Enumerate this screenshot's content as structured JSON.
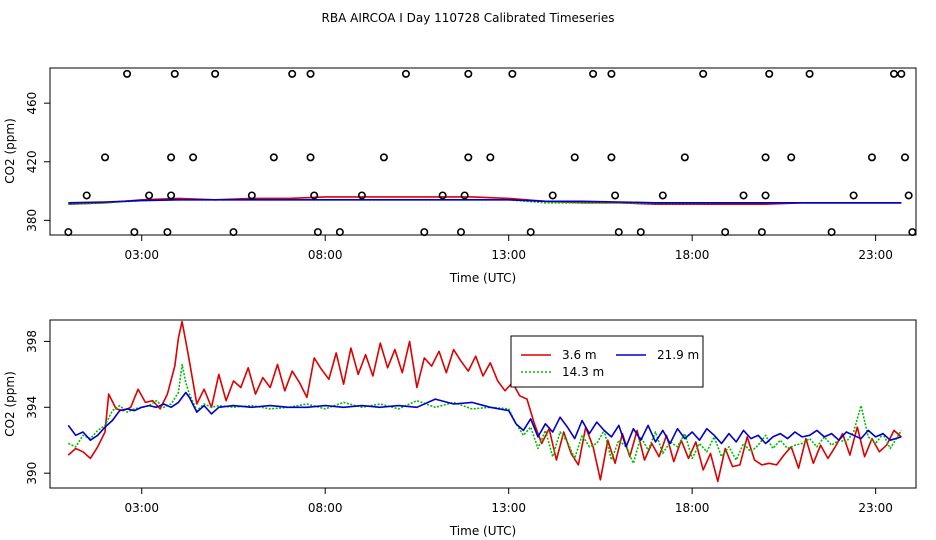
{
  "title": "RBA AIRCOA I  Day 110728  Calibrated Timeseries",
  "chart_data": [
    {
      "type": "line",
      "xlabel": "Time (UTC)",
      "ylabel": "CO2 (ppm)",
      "xlim": [
        0.5,
        24.1
      ],
      "ylim": [
        370,
        484
      ],
      "x_ticks": [
        3,
        8,
        13,
        18,
        23
      ],
      "x_tick_labels": [
        "03:00",
        "08:00",
        "13:00",
        "18:00",
        "23:00"
      ],
      "y_ticks": [
        380,
        420,
        460
      ],
      "y_tick_labels": [
        "380",
        "420",
        "460"
      ],
      "outliers": [
        {
          "x": 1.0,
          "y": 372
        },
        {
          "x": 1.5,
          "y": 397
        },
        {
          "x": 2.0,
          "y": 423
        },
        {
          "x": 2.6,
          "y": 480
        },
        {
          "x": 2.8,
          "y": 372
        },
        {
          "x": 3.2,
          "y": 397
        },
        {
          "x": 3.7,
          "y": 372
        },
        {
          "x": 3.8,
          "y": 397
        },
        {
          "x": 3.8,
          "y": 423
        },
        {
          "x": 3.9,
          "y": 480
        },
        {
          "x": 4.4,
          "y": 423
        },
        {
          "x": 5.0,
          "y": 480
        },
        {
          "x": 5.5,
          "y": 372
        },
        {
          "x": 6.0,
          "y": 397
        },
        {
          "x": 6.6,
          "y": 423
        },
        {
          "x": 7.1,
          "y": 480
        },
        {
          "x": 7.6,
          "y": 480
        },
        {
          "x": 7.6,
          "y": 423
        },
        {
          "x": 7.7,
          "y": 397
        },
        {
          "x": 7.8,
          "y": 372
        },
        {
          "x": 8.4,
          "y": 372
        },
        {
          "x": 9.0,
          "y": 397
        },
        {
          "x": 9.6,
          "y": 423
        },
        {
          "x": 10.2,
          "y": 480
        },
        {
          "x": 10.7,
          "y": 372
        },
        {
          "x": 11.2,
          "y": 397
        },
        {
          "x": 11.7,
          "y": 372
        },
        {
          "x": 11.8,
          "y": 397
        },
        {
          "x": 11.9,
          "y": 423
        },
        {
          "x": 11.9,
          "y": 480
        },
        {
          "x": 12.5,
          "y": 423
        },
        {
          "x": 13.1,
          "y": 480
        },
        {
          "x": 13.6,
          "y": 372
        },
        {
          "x": 14.2,
          "y": 397
        },
        {
          "x": 14.8,
          "y": 423
        },
        {
          "x": 15.3,
          "y": 480
        },
        {
          "x": 15.8,
          "y": 480
        },
        {
          "x": 15.8,
          "y": 423
        },
        {
          "x": 15.9,
          "y": 397
        },
        {
          "x": 16.0,
          "y": 372
        },
        {
          "x": 16.6,
          "y": 372
        },
        {
          "x": 17.2,
          "y": 397
        },
        {
          "x": 17.8,
          "y": 423
        },
        {
          "x": 18.3,
          "y": 480
        },
        {
          "x": 18.9,
          "y": 372
        },
        {
          "x": 19.4,
          "y": 397
        },
        {
          "x": 19.9,
          "y": 372
        },
        {
          "x": 20.0,
          "y": 397
        },
        {
          "x": 20.0,
          "y": 423
        },
        {
          "x": 20.1,
          "y": 480
        },
        {
          "x": 20.7,
          "y": 423
        },
        {
          "x": 21.2,
          "y": 480
        },
        {
          "x": 21.8,
          "y": 372
        },
        {
          "x": 22.4,
          "y": 397
        },
        {
          "x": 22.9,
          "y": 423
        },
        {
          "x": 23.5,
          "y": 480
        },
        {
          "x": 23.7,
          "y": 480
        },
        {
          "x": 23.8,
          "y": 423
        },
        {
          "x": 23.9,
          "y": 397
        },
        {
          "x": 24.0,
          "y": 372
        }
      ],
      "series": [
        {
          "name": "3.6 m",
          "color": "#dd0000",
          "x": [
            1.0,
            2.0,
            3.0,
            4.0,
            5.0,
            6.0,
            7.0,
            8.0,
            9.0,
            10.0,
            11.0,
            12.0,
            13.0,
            14.0,
            15.0,
            16.0,
            17.0,
            18.0,
            19.0,
            20.0,
            21.0,
            22.0,
            23.0,
            23.7
          ],
          "y": [
            391,
            392,
            394,
            395,
            394,
            395,
            395,
            396,
            396,
            396,
            396,
            396,
            395,
            393,
            392,
            392,
            391,
            391,
            391,
            391,
            392,
            392,
            392,
            392
          ]
        },
        {
          "name": "14.3 m",
          "color": "#00bb00",
          "x": [
            1.0,
            2.0,
            3.0,
            4.0,
            5.0,
            6.0,
            7.0,
            8.0,
            9.0,
            10.0,
            11.0,
            12.0,
            13.0,
            14.0,
            15.0,
            16.0,
            17.0,
            18.0,
            19.0,
            20.0,
            21.0,
            22.0,
            23.0,
            23.7
          ],
          "y": [
            391,
            392,
            393.5,
            394,
            394,
            394,
            394,
            394,
            394,
            394,
            394,
            394,
            394,
            392,
            392,
            392,
            391.5,
            391.5,
            392,
            392,
            392,
            392,
            392,
            392
          ]
        },
        {
          "name": "21.9 m",
          "color": "#0000cc",
          "x": [
            1.0,
            2.0,
            3.0,
            4.0,
            5.0,
            6.0,
            7.0,
            8.0,
            9.0,
            10.0,
            11.0,
            12.0,
            13.0,
            14.0,
            15.0,
            16.0,
            17.0,
            18.0,
            19.0,
            20.0,
            21.0,
            22.0,
            23.0,
            23.7
          ],
          "y": [
            392,
            392.5,
            393.5,
            394,
            394,
            394,
            394,
            394,
            394,
            394,
            394,
            394,
            394,
            393,
            393,
            392.5,
            392,
            392,
            392,
            392,
            392,
            392,
            392,
            392
          ]
        }
      ]
    },
    {
      "type": "line",
      "xlabel": "Time (UTC)",
      "ylabel": "CO2 (ppm)",
      "xlim": [
        0.5,
        24.1
      ],
      "ylim": [
        389.1,
        399.3
      ],
      "x_ticks": [
        3,
        8,
        13,
        18,
        23
      ],
      "x_tick_labels": [
        "03:00",
        "08:00",
        "13:00",
        "18:00",
        "23:00"
      ],
      "y_ticks": [
        390,
        394,
        398
      ],
      "y_tick_labels": [
        "390",
        "394",
        "398"
      ],
      "legend": {
        "position": "top-center",
        "entries": [
          "3.6 m",
          "14.3 m",
          "21.9 m"
        ]
      },
      "series": [
        {
          "name": "3.6 m",
          "color": "#dd0000",
          "x": [
            1.0,
            1.2,
            1.4,
            1.6,
            1.8,
            2.0,
            2.1,
            2.3,
            2.5,
            2.7,
            2.9,
            3.1,
            3.3,
            3.5,
            3.7,
            3.9,
            4.0,
            4.1,
            4.2,
            4.3,
            4.5,
            4.7,
            4.9,
            5.1,
            5.3,
            5.5,
            5.7,
            5.9,
            6.1,
            6.3,
            6.5,
            6.7,
            6.9,
            7.1,
            7.3,
            7.5,
            7.7,
            7.9,
            8.1,
            8.3,
            8.5,
            8.7,
            8.9,
            9.1,
            9.3,
            9.5,
            9.7,
            9.9,
            10.1,
            10.3,
            10.5,
            10.7,
            10.9,
            11.1,
            11.3,
            11.5,
            11.7,
            11.9,
            12.1,
            12.3,
            12.5,
            12.7,
            12.9,
            13.1,
            13.3,
            13.5,
            13.7,
            13.9,
            14.1,
            14.3,
            14.5,
            14.7,
            14.9,
            15.1,
            15.3,
            15.5,
            15.7,
            15.9,
            16.1,
            16.3,
            16.5,
            16.7,
            16.9,
            17.1,
            17.3,
            17.5,
            17.7,
            17.9,
            18.1,
            18.3,
            18.5,
            18.7,
            18.9,
            19.1,
            19.3,
            19.5,
            19.7,
            19.9,
            20.1,
            20.3,
            20.5,
            20.7,
            20.9,
            21.1,
            21.3,
            21.5,
            21.7,
            21.9,
            22.1,
            22.3,
            22.5,
            22.7,
            22.9,
            23.1,
            23.3,
            23.5,
            23.7
          ],
          "y": [
            391.1,
            391.5,
            391.3,
            390.9,
            391.6,
            392.5,
            394.8,
            393.9,
            393.8,
            394.0,
            395.1,
            394.3,
            394.4,
            393.9,
            394.8,
            396.5,
            398.2,
            399.2,
            398.0,
            396.8,
            394.2,
            395.1,
            394.0,
            396.0,
            394.4,
            395.6,
            395.2,
            396.4,
            394.8,
            395.8,
            395.2,
            396.6,
            395.0,
            396.2,
            395.5,
            394.6,
            397.0,
            396.3,
            395.7,
            397.3,
            395.4,
            397.6,
            396.0,
            397.2,
            395.9,
            397.9,
            396.4,
            397.5,
            396.1,
            398.0,
            395.2,
            397.0,
            396.5,
            397.4,
            396.1,
            397.5,
            396.8,
            396.2,
            397.1,
            395.9,
            396.7,
            395.6,
            395.0,
            395.5,
            394.7,
            394.5,
            393.0,
            391.8,
            392.7,
            390.8,
            392.5,
            391.2,
            390.5,
            392.8,
            391.6,
            389.6,
            392.0,
            390.6,
            392.4,
            391.0,
            392.6,
            390.8,
            391.8,
            391.0,
            392.3,
            390.7,
            392.0,
            390.9,
            391.9,
            390.2,
            391.2,
            389.5,
            391.5,
            390.4,
            390.5,
            392.2,
            390.8,
            390.5,
            390.6,
            390.5,
            391.1,
            391.6,
            390.3,
            392.1,
            390.6,
            391.7,
            390.9,
            391.6,
            392.4,
            391.1,
            392.8,
            391.0,
            392.1,
            391.3,
            391.7,
            392.6,
            392.2
          ]
        },
        {
          "name": "14.3 m",
          "color": "#00bb00",
          "x": [
            1.0,
            1.2,
            1.4,
            1.6,
            1.8,
            2.0,
            2.2,
            2.4,
            2.6,
            2.8,
            3.0,
            3.2,
            3.4,
            3.6,
            3.8,
            4.0,
            4.1,
            4.2,
            4.3,
            4.5,
            4.7,
            4.9,
            5.1,
            5.5,
            6.0,
            6.5,
            7.0,
            7.5,
            8.0,
            8.5,
            9.0,
            9.5,
            10.0,
            10.5,
            11.0,
            11.5,
            12.0,
            12.5,
            13.0,
            13.2,
            13.4,
            13.6,
            13.8,
            14.0,
            14.2,
            14.4,
            14.6,
            14.8,
            15.0,
            15.2,
            15.4,
            15.6,
            15.8,
            16.0,
            16.2,
            16.4,
            16.6,
            16.8,
            17.0,
            17.2,
            17.4,
            17.6,
            17.8,
            18.0,
            18.2,
            18.4,
            18.6,
            18.8,
            19.0,
            19.2,
            19.4,
            19.6,
            19.8,
            20.0,
            20.2,
            20.4,
            20.6,
            20.8,
            21.0,
            21.2,
            21.4,
            21.6,
            21.8,
            22.0,
            22.2,
            22.4,
            22.6,
            22.8,
            23.0,
            23.2,
            23.4,
            23.7
          ],
          "y": [
            391.8,
            391.6,
            392.3,
            392.1,
            392.6,
            392.9,
            393.8,
            394.1,
            393.7,
            393.9,
            394.0,
            394.1,
            394.4,
            394.0,
            394.2,
            394.9,
            396.6,
            395.5,
            394.8,
            393.8,
            394.2,
            394.0,
            394.1,
            394.0,
            394.1,
            393.9,
            394.0,
            394.2,
            393.9,
            394.3,
            394.0,
            394.2,
            393.9,
            394.4,
            394.0,
            394.3,
            393.9,
            394.0,
            393.9,
            393.0,
            392.3,
            392.8,
            391.5,
            392.6,
            391.0,
            392.5,
            391.9,
            390.9,
            392.3,
            391.6,
            391.8,
            392.6,
            390.8,
            392.0,
            391.6,
            390.6,
            392.2,
            391.4,
            392.5,
            391.2,
            391.9,
            391.6,
            392.4,
            390.9,
            391.8,
            391.3,
            392.2,
            391.0,
            391.6,
            390.8,
            391.8,
            391.3,
            391.7,
            392.3,
            391.5,
            392.0,
            391.5,
            391.7,
            391.8,
            392.1,
            391.6,
            392.2,
            391.7,
            392.0,
            391.9,
            392.5,
            394.1,
            392.2,
            391.8,
            392.4,
            391.5,
            392.6
          ]
        },
        {
          "name": "21.9 m",
          "color": "#0000cc",
          "x": [
            1.0,
            1.2,
            1.4,
            1.6,
            1.8,
            2.0,
            2.2,
            2.4,
            2.6,
            2.8,
            3.0,
            3.2,
            3.4,
            3.6,
            3.8,
            4.0,
            4.2,
            4.3,
            4.5,
            4.7,
            4.9,
            5.1,
            5.5,
            6.0,
            6.5,
            7.0,
            7.5,
            8.0,
            8.5,
            9.0,
            9.5,
            10.0,
            10.5,
            11.0,
            11.5,
            12.0,
            12.5,
            13.0,
            13.2,
            13.4,
            13.6,
            13.8,
            14.0,
            14.2,
            14.4,
            14.6,
            14.8,
            15.0,
            15.2,
            15.4,
            15.6,
            15.8,
            16.0,
            16.2,
            16.4,
            16.6,
            16.8,
            17.0,
            17.2,
            17.4,
            17.6,
            17.8,
            18.0,
            18.2,
            18.4,
            18.6,
            18.8,
            19.0,
            19.2,
            19.4,
            19.6,
            19.8,
            20.0,
            20.2,
            20.4,
            20.6,
            20.8,
            21.0,
            21.2,
            21.4,
            21.6,
            21.8,
            22.0,
            22.2,
            22.4,
            22.6,
            22.8,
            23.0,
            23.2,
            23.4,
            23.7
          ],
          "y": [
            392.9,
            392.3,
            392.5,
            392.0,
            392.3,
            392.8,
            393.2,
            393.8,
            393.9,
            393.8,
            394.0,
            394.1,
            394.0,
            394.2,
            394.0,
            394.3,
            394.9,
            394.6,
            393.7,
            394.1,
            393.6,
            394.0,
            394.1,
            394.0,
            394.1,
            394.0,
            394.0,
            394.1,
            394.0,
            394.1,
            394.0,
            394.1,
            394.0,
            394.5,
            394.2,
            394.3,
            394.0,
            393.8,
            393.0,
            392.6,
            393.3,
            392.2,
            393.0,
            392.5,
            393.4,
            392.8,
            392.1,
            393.2,
            392.4,
            393.1,
            392.6,
            392.2,
            392.9,
            391.6,
            392.7,
            392.0,
            392.9,
            391.9,
            392.6,
            391.8,
            392.7,
            392.1,
            392.5,
            392.0,
            392.7,
            392.3,
            391.8,
            392.4,
            391.9,
            392.6,
            392.1,
            392.3,
            391.8,
            392.2,
            392.4,
            392.1,
            392.5,
            392.2,
            392.3,
            392.6,
            392.2,
            392.4,
            392.0,
            392.5,
            392.3,
            392.1,
            392.6,
            392.2,
            392.4,
            392.0,
            392.2
          ]
        }
      ]
    }
  ]
}
